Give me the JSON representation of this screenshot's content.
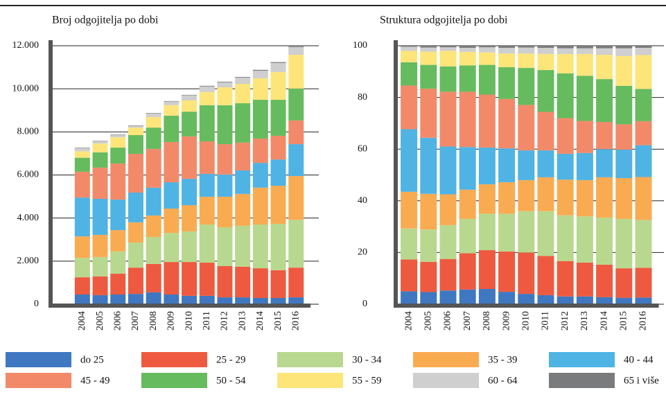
{
  "chart_data": [
    {
      "type": "stacked_bar",
      "title": "Broj odgojitelja po dobi",
      "categories": [
        "2004",
        "2005",
        "2006",
        "2007",
        "2008",
        "2009",
        "2010",
        "2011",
        "2012",
        "2013",
        "2014",
        "2015",
        "2016"
      ],
      "ylim": [
        0,
        12000
      ],
      "yticks": [
        0,
        {
          "value": 2000,
          "label": "2.000"
        },
        {
          "value": 4000,
          "label": "4.000"
        },
        {
          "value": 6000,
          "label": "6.000"
        },
        {
          "value": 8000,
          "label": "8.000"
        },
        {
          "value": 10000,
          "label": "10.000"
        },
        {
          "value": 12000,
          "label": "12.000"
        }
      ],
      "grid": true,
      "series": [
        {
          "name": "do 25",
          "color": "#3f78c0",
          "values": [
            450,
            420,
            450,
            480,
            550,
            450,
            390,
            390,
            320,
            320,
            290,
            290,
            320
          ]
        },
        {
          "name": "25 - 29",
          "color": "#ee5a3f",
          "values": [
            800,
            870,
            970,
            1220,
            1320,
            1510,
            1570,
            1540,
            1450,
            1420,
            1380,
            1290,
            1380
          ]
        },
        {
          "name": "30 - 34",
          "color": "#b8d88f",
          "values": [
            900,
            900,
            1030,
            1160,
            1250,
            1350,
            1420,
            1770,
            1800,
            1900,
            2030,
            2150,
            2220
          ]
        },
        {
          "name": "35 - 39",
          "color": "#f9ab52",
          "values": [
            1000,
            1030,
            990,
            940,
            1000,
            1130,
            1220,
            1290,
            1420,
            1480,
            1710,
            1770,
            2030
          ]
        },
        {
          "name": "40 - 44",
          "color": "#4fb3e3",
          "values": [
            1800,
            1670,
            1420,
            1380,
            1290,
            1220,
            1220,
            1060,
            1030,
            1090,
            1150,
            1220,
            1480
          ]
        },
        {
          "name": "45 - 49",
          "color": "#f28a6a",
          "values": [
            1200,
            1450,
            1670,
            1800,
            1800,
            1870,
            1970,
            1510,
            1410,
            1290,
            1130,
            1100,
            1100
          ]
        },
        {
          "name": "50 - 54",
          "color": "#66bb5e",
          "values": [
            650,
            710,
            740,
            870,
            990,
            1220,
            1150,
            1680,
            1810,
            1830,
            1800,
            1670,
            1480
          ]
        },
        {
          "name": "55 - 59",
          "color": "#fde57a",
          "values": [
            300,
            410,
            480,
            350,
            490,
            490,
            520,
            610,
            830,
            900,
            1000,
            1290,
            1570
          ]
        },
        {
          "name": "60 - 64",
          "color": "#cfcfcf",
          "values": [
            150,
            100,
            110,
            80,
            170,
            170,
            240,
            260,
            230,
            290,
            350,
            420,
            360
          ]
        },
        {
          "name": "65 i više",
          "color": "#7a7b7d",
          "values": [
            20,
            20,
            20,
            20,
            20,
            20,
            20,
            30,
            30,
            30,
            40,
            40,
            30
          ]
        }
      ]
    },
    {
      "type": "stacked_bar",
      "title": "Struktura odgojitelja po dobi",
      "categories": [
        "2004",
        "2005",
        "2006",
        "2007",
        "2008",
        "2009",
        "2010",
        "2011",
        "2012",
        "2013",
        "2014",
        "2015",
        "2016"
      ],
      "ylim": [
        0,
        100
      ],
      "yticks": [
        0,
        20,
        40,
        60,
        80,
        100
      ],
      "grid": true,
      "series": [
        {
          "values": [
            5,
            4.7,
            5.3,
            5.7,
            5.9,
            4.8,
            4,
            3.5,
            3,
            3,
            2.7,
            2.5,
            2.6
          ]
        },
        {
          "values": [
            12.3,
            11.7,
            12.2,
            14,
            15,
            15.6,
            16,
            15.2,
            13.7,
            13.1,
            12.6,
            11.4,
            11.5
          ]
        },
        {
          "values": [
            12,
            12.5,
            13.1,
            13.3,
            14.1,
            14.6,
            16,
            17.3,
            17.7,
            17.9,
            18.2,
            19.1,
            18.5
          ]
        },
        {
          "values": [
            14.2,
            13.8,
            11.9,
            11.3,
            11.4,
            12.2,
            12,
            13.1,
            13.8,
            14,
            15.6,
            15.8,
            16.6
          ]
        },
        {
          "values": [
            24.2,
            21.7,
            18.5,
            16.5,
            14.2,
            13.1,
            11.5,
            10.4,
            10,
            10.5,
            10.9,
            11,
            12.3
          ]
        },
        {
          "values": [
            16.9,
            19,
            21.2,
            21.4,
            20.5,
            19.1,
            17.6,
            14.9,
            13.8,
            12.4,
            10.5,
            9.8,
            9.3
          ]
        },
        {
          "values": [
            9,
            9.2,
            9.8,
            10.2,
            11.5,
            12.3,
            14.3,
            16.2,
            17.3,
            17.5,
            16.6,
            14.9,
            12.5
          ]
        },
        {
          "values": [
            4.4,
            5.1,
            6,
            5.2,
            4.8,
            5.3,
            5.6,
            6.2,
            7.5,
            8.4,
            9.4,
            11.5,
            13.1
          ]
        },
        {
          "values": [
            1.6,
            1.6,
            1.4,
            1.6,
            2,
            2.2,
            2.3,
            2.4,
            2.2,
            2.2,
            2.5,
            3,
            2.8
          ]
        },
        {
          "values": [
            0.4,
            0.7,
            0.6,
            0.8,
            0.6,
            0.8,
            0.7,
            0.8,
            1,
            1,
            1,
            1,
            0.8
          ]
        }
      ]
    }
  ]
}
